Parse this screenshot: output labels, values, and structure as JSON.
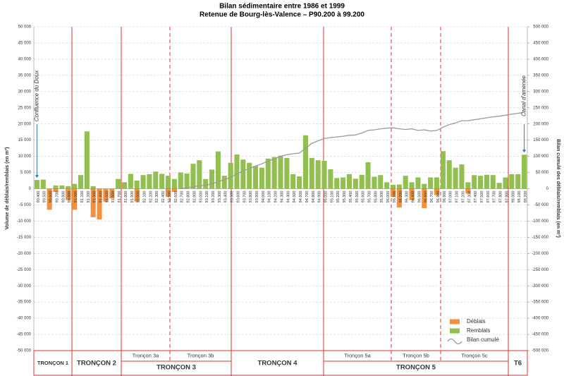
{
  "chart_data": {
    "type": "bar",
    "title": "Bilan sédimentaire entre 1986 et 1999",
    "subtitle": "Retenue de Bourg-lès-Valence – P90.200 à 99.200",
    "y_label": "Volume de déblais/remblais (en m³)",
    "y2_label": "Bilan cumulé des déblais/remblais (en m³)",
    "categories": [
      "90.400",
      "90.500",
      "90.600",
      "90.700",
      "90.800",
      "90.900",
      "91.000",
      "91.100",
      "91.200",
      "91.300",
      "91.400",
      "91.500",
      "91.600",
      "91.700",
      "91.800",
      "91.900",
      "92.000",
      "92.100",
      "92.200",
      "92.300",
      "92.400",
      "92.500",
      "92.600",
      "92.700",
      "92.800",
      "92.900",
      "93.000",
      "93.100",
      "93.200",
      "93.300",
      "93.400",
      "93.500",
      "93.600",
      "93.700",
      "93.800",
      "93.900",
      "94.000",
      "94.100",
      "94.200",
      "94.300",
      "94.400",
      "94.500",
      "94.600",
      "94.700",
      "94.800",
      "94.900",
      "95.000",
      "95.100",
      "95.200",
      "95.300",
      "95.400",
      "95.500",
      "95.600",
      "95.700",
      "95.800",
      "95.900",
      "96.000",
      "96.100",
      "96.200",
      "96.300",
      "96.400",
      "96.500",
      "96.600",
      "96.700",
      "96.800",
      "96.900",
      "97.000",
      "97.100",
      "97.200",
      "97.300",
      "97.400",
      "97.500",
      "97.600",
      "97.700",
      "97.800",
      "97.900",
      "98.000",
      "98.100",
      "98.200"
    ],
    "series": [
      {
        "name": "Déblais",
        "color": "#f0913f",
        "values": [
          0,
          0,
          -6500,
          -1000,
          0,
          -3500,
          -6500,
          0,
          0,
          -8800,
          -9500,
          -4000,
          -3000,
          0,
          0,
          0,
          -4000,
          0,
          0,
          0,
          0,
          -2500,
          -1000,
          0,
          0,
          0,
          0,
          0,
          0,
          0,
          0,
          0,
          0,
          0,
          0,
          0,
          0,
          0,
          0,
          0,
          0,
          0,
          0,
          0,
          0,
          0,
          0,
          0,
          0,
          0,
          0,
          0,
          0,
          0,
          0,
          0,
          0,
          -2500,
          -5800,
          0,
          -3500,
          0,
          -6000,
          0,
          -2000,
          0,
          0,
          0,
          0,
          -1500,
          0,
          0,
          0,
          0,
          0,
          0,
          0,
          0,
          0
        ]
      },
      {
        "name": "Remblais",
        "color": "#92c050",
        "values": [
          2700,
          2800,
          0,
          1000,
          1000,
          800,
          1500,
          4200,
          17700,
          800,
          0,
          0,
          0,
          3000,
          2000,
          4600,
          2500,
          4200,
          4500,
          5300,
          4600,
          4000,
          3000,
          5000,
          4700,
          7700,
          8800,
          3000,
          5900,
          11500,
          4000,
          8000,
          10600,
          9000,
          8000,
          7000,
          6500,
          9300,
          9800,
          10200,
          9500,
          4500,
          3800,
          16500,
          9500,
          8800,
          8600,
          6000,
          3300,
          3500,
          4500,
          3100,
          4300,
          8200,
          3700,
          4200,
          2000,
          1200,
          1300,
          4000,
          2000,
          3500,
          1500,
          3500,
          3500,
          11600,
          8800,
          6500,
          7500,
          2000,
          4200,
          4000,
          4300,
          4200,
          1800,
          3500,
          4500,
          4500,
          10500
        ]
      },
      {
        "name": "Bilan cumulé",
        "color": "#999999",
        "type": "line",
        "axis": "y2",
        "values": [
          null,
          null,
          null,
          null,
          null,
          null,
          null,
          null,
          null,
          null,
          null,
          null,
          null,
          null,
          null,
          null,
          null,
          null,
          null,
          null,
          null,
          null,
          null,
          0,
          3000,
          6000,
          9000,
          11000,
          15000,
          22000,
          28000,
          35000,
          45000,
          55000,
          62000,
          70000,
          77000,
          85000,
          92000,
          100000,
          105000,
          108000,
          110000,
          125000,
          140000,
          148000,
          155000,
          158000,
          160000,
          162000,
          165000,
          166000,
          172000,
          180000,
          182000,
          185000,
          187000,
          188000,
          185000,
          183000,
          185000,
          180000,
          182000,
          178000,
          180000,
          190000,
          198000,
          203000,
          210000,
          210000,
          213000,
          216000,
          219000,
          222000,
          224000,
          227000,
          230000,
          233000,
          236000
        ]
      }
    ],
    "ylim": [
      -50000,
      50000
    ],
    "yticks": [
      {
        "value": -50000,
        "label": "-50 000"
      },
      {
        "value": -45000,
        "label": "-45 000"
      },
      {
        "value": -40000,
        "label": "-40 000"
      },
      {
        "value": -35000,
        "label": "-35 000"
      },
      {
        "value": -30000,
        "label": "-30 000"
      },
      {
        "value": -25000,
        "label": "-25 000"
      },
      {
        "value": -20000,
        "label": "-20 000"
      },
      {
        "value": -15000,
        "label": "-15 000"
      },
      {
        "value": -10000,
        "label": "-10 000"
      },
      {
        "value": -5000,
        "label": "-5 000"
      },
      0,
      {
        "value": 5000,
        "label": "5 000"
      },
      {
        "value": 10000,
        "label": "10 000"
      },
      {
        "value": 15000,
        "label": "15 000"
      },
      {
        "value": 20000,
        "label": "20 000"
      },
      {
        "value": 25000,
        "label": "25 000"
      },
      {
        "value": 30000,
        "label": "30 000"
      },
      {
        "value": 35000,
        "label": "35 000"
      },
      {
        "value": 40000,
        "label": "40 000"
      },
      {
        "value": 45000,
        "label": "45 000"
      },
      {
        "value": 50000,
        "label": "50 000"
      }
    ],
    "y2lim": [
      -500000,
      500000
    ],
    "y2ticks": [
      {
        "value": -500000,
        "label": "-500 000"
      },
      {
        "value": -450000,
        "label": "-450 000"
      },
      {
        "value": -400000,
        "label": "-400 000"
      },
      {
        "value": -350000,
        "label": "-350 000"
      },
      {
        "value": -300000,
        "label": "-300 000"
      },
      {
        "value": -250000,
        "label": "-250 000"
      },
      {
        "value": -200000,
        "label": "-200 000"
      },
      {
        "value": -150000,
        "label": "-150 000"
      },
      {
        "value": -100000,
        "label": "-100 000"
      },
      {
        "value": -50000,
        "label": "-50 000"
      },
      0,
      {
        "value": 50000,
        "label": "50 000"
      },
      {
        "value": 100000,
        "label": "100 000"
      },
      {
        "value": 150000,
        "label": "150 000"
      },
      {
        "value": 200000,
        "label": "200 000"
      },
      {
        "value": 250000,
        "label": "250 000"
      },
      {
        "value": 300000,
        "label": "300 000"
      },
      {
        "value": 350000,
        "label": "350 000"
      },
      {
        "value": 400000,
        "label": "400 000"
      },
      {
        "value": 450000,
        "label": "450 000"
      },
      {
        "value": 500000,
        "label": "500 000"
      }
    ],
    "grid": true,
    "legend": "bottom-right",
    "annotations": [
      {
        "text": "Confluence du Doux"
      },
      {
        "text": "Canal d'amenée"
      }
    ],
    "sections": [
      {
        "name": "TRONÇON 1"
      },
      {
        "name": "TRONÇON 2"
      },
      {
        "name": "TRONÇON 3",
        "parts": [
          "Tronçon 3a",
          "Tronçon 3b"
        ]
      },
      {
        "name": "TRONÇON 4"
      },
      {
        "name": "TRONÇON 5",
        "parts": [
          "Tronçon 5a",
          "Tronçon 5b",
          "Tronçon 5c"
        ]
      },
      {
        "name": "T6"
      }
    ]
  }
}
